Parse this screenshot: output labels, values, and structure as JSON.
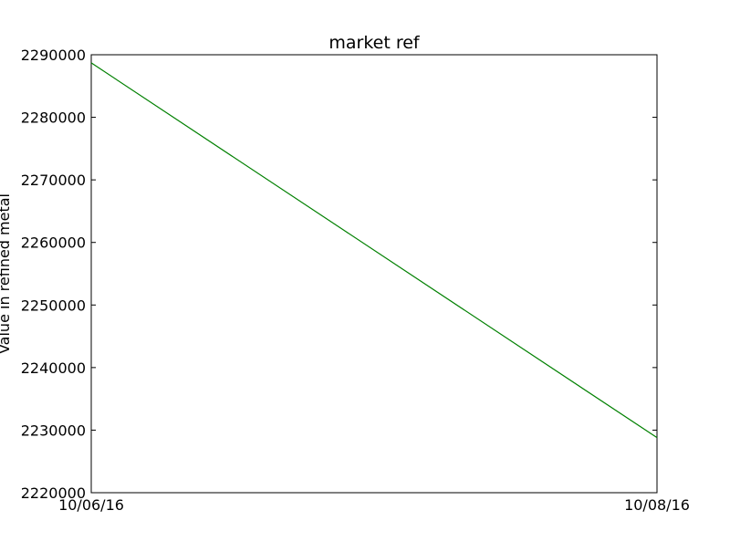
{
  "chart_data": {
    "type": "line",
    "title": "market ref",
    "xlabel": "",
    "ylabel": "Value in refined metal",
    "x_ticks": [
      "10/06/16",
      "10/08/16"
    ],
    "y_ticks": [
      2220000,
      2230000,
      2240000,
      2250000,
      2260000,
      2270000,
      2280000,
      2290000
    ],
    "ylim": [
      2220000,
      2290000
    ],
    "grid": false,
    "series": [
      {
        "color": "#008000",
        "x": [
          "10/06/16",
          "10/08/16"
        ],
        "values": [
          2288700,
          2228800
        ]
      }
    ]
  }
}
